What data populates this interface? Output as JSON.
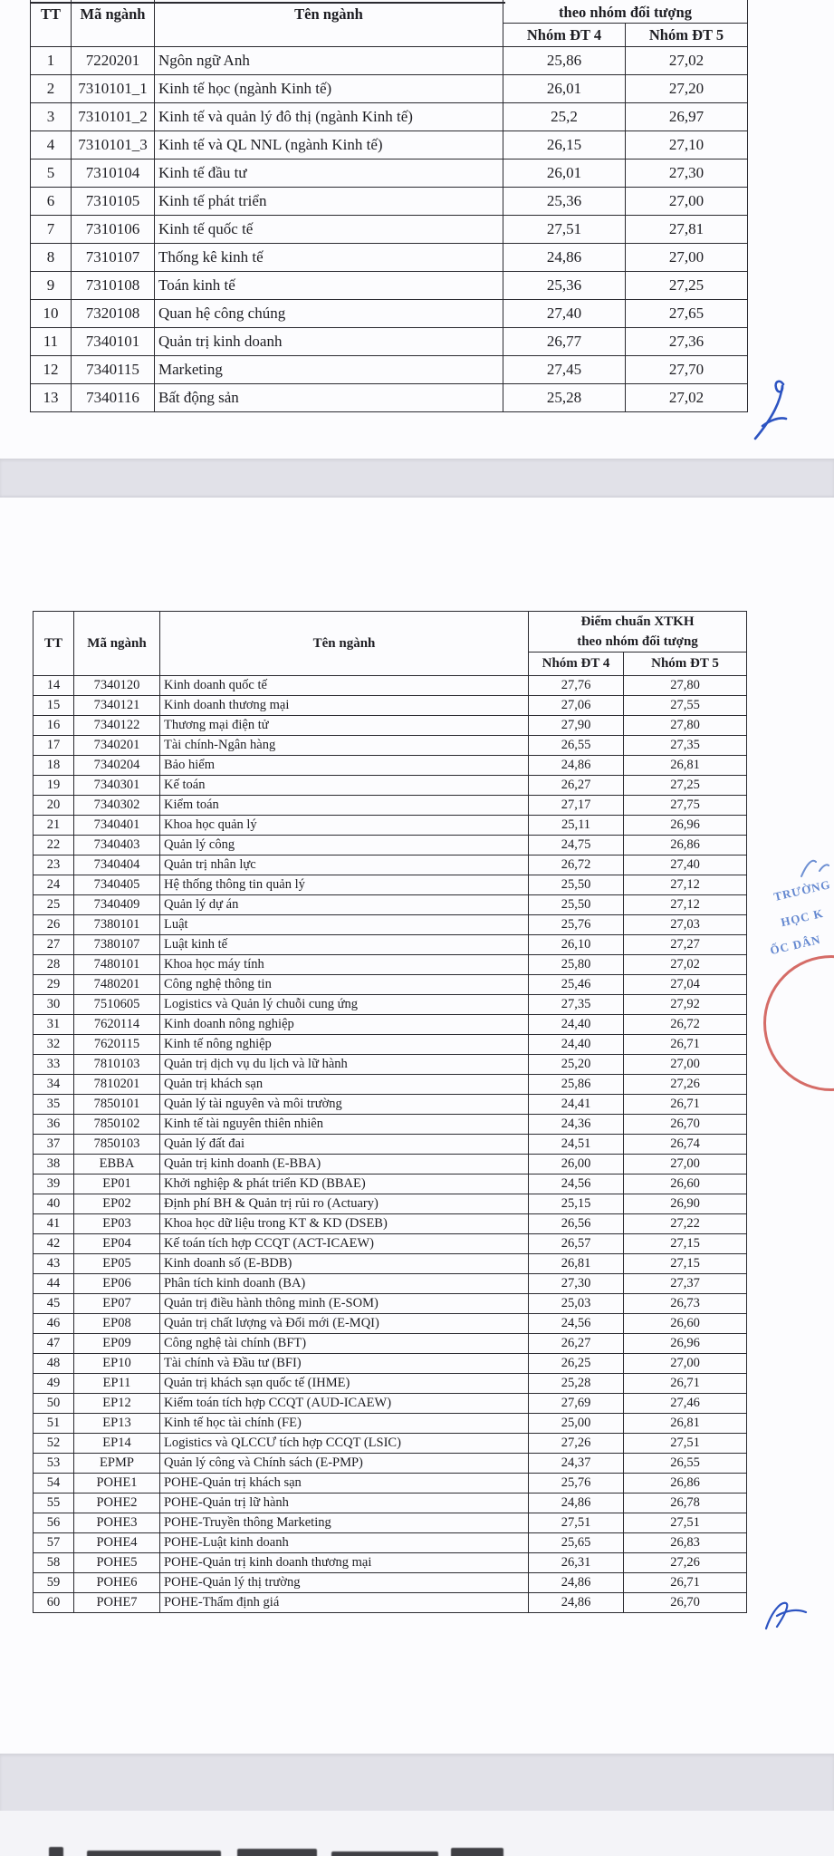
{
  "header": {
    "col_tt": "TT",
    "col_code": "Mã ngành",
    "col_name": "Tên ngành",
    "col_group_line1": "Điểm chuẩn XTKH",
    "col_group_line2": "theo nhóm đối tượng",
    "col_dt4": "Nhóm ĐT 4",
    "col_dt5": "Nhóm ĐT 5"
  },
  "table1": {
    "rows": [
      [
        "1",
        "7220201",
        "Ngôn ngữ Anh",
        "25,86",
        "27,02"
      ],
      [
        "2",
        "7310101_1",
        "Kinh tế học (ngành Kinh tế)",
        "26,01",
        "27,20"
      ],
      [
        "3",
        "7310101_2",
        "Kinh tế và quản lý đô thị (ngành Kinh tế)",
        "25,2",
        "26,97"
      ],
      [
        "4",
        "7310101_3",
        "Kinh tế và QL NNL (ngành Kinh tế)",
        "26,15",
        "27,10"
      ],
      [
        "5",
        "7310104",
        "Kinh tế đầu tư",
        "26,01",
        "27,30"
      ],
      [
        "6",
        "7310105",
        "Kinh tế phát triển",
        "25,36",
        "27,00"
      ],
      [
        "7",
        "7310106",
        "Kinh tế quốc tế",
        "27,51",
        "27,81"
      ],
      [
        "8",
        "7310107",
        "Thống kê kinh tế",
        "24,86",
        "27,00"
      ],
      [
        "9",
        "7310108",
        "Toán kinh tế",
        "25,36",
        "27,25"
      ],
      [
        "10",
        "7320108",
        "Quan hệ công chúng",
        "27,40",
        "27,65"
      ],
      [
        "11",
        "7340101",
        "Quản trị kinh doanh",
        "26,77",
        "27,36"
      ],
      [
        "12",
        "7340115",
        "Marketing",
        "27,45",
        "27,70"
      ],
      [
        "13",
        "7340116",
        "Bất động sản",
        "25,28",
        "27,02"
      ]
    ]
  },
  "table2": {
    "rows": [
      [
        "14",
        "7340120",
        "Kinh doanh quốc tế",
        "27,76",
        "27,80"
      ],
      [
        "15",
        "7340121",
        "Kinh doanh thương mại",
        "27,06",
        "27,55"
      ],
      [
        "16",
        "7340122",
        "Thương mại điện tử",
        "27,90",
        "27,80"
      ],
      [
        "17",
        "7340201",
        "Tài chính-Ngân hàng",
        "26,55",
        "27,35"
      ],
      [
        "18",
        "7340204",
        "Bảo hiểm",
        "24,86",
        "26,81"
      ],
      [
        "19",
        "7340301",
        "Kế toán",
        "26,27",
        "27,25"
      ],
      [
        "20",
        "7340302",
        "Kiểm toán",
        "27,17",
        "27,75"
      ],
      [
        "21",
        "7340401",
        "Khoa học quản lý",
        "25,11",
        "26,96"
      ],
      [
        "22",
        "7340403",
        "Quản lý công",
        "24,75",
        "26,86"
      ],
      [
        "23",
        "7340404",
        "Quản trị nhân lực",
        "26,72",
        "27,40"
      ],
      [
        "24",
        "7340405",
        "Hệ thống thông tin quản lý",
        "25,50",
        "27,12"
      ],
      [
        "25",
        "7340409",
        "Quản lý dự án",
        "25,50",
        "27,12"
      ],
      [
        "26",
        "7380101",
        "Luật",
        "25,76",
        "27,03"
      ],
      [
        "27",
        "7380107",
        "Luật kinh tế",
        "26,10",
        "27,27"
      ],
      [
        "28",
        "7480101",
        "Khoa học máy tính",
        "25,80",
        "27,02"
      ],
      [
        "29",
        "7480201",
        "Công nghệ thông tin",
        "25,46",
        "27,04"
      ],
      [
        "30",
        "7510605",
        "Logistics và Quản lý chuỗi cung ứng",
        "27,35",
        "27,92"
      ],
      [
        "31",
        "7620114",
        "Kinh doanh nông nghiệp",
        "24,40",
        "26,72"
      ],
      [
        "32",
        "7620115",
        "Kinh tế nông nghiệp",
        "24,40",
        "26,71"
      ],
      [
        "33",
        "7810103",
        "Quản trị dịch vụ du lịch và lữ hành",
        "25,20",
        "27,00"
      ],
      [
        "34",
        "7810201",
        "Quản trị khách sạn",
        "25,86",
        "27,26"
      ],
      [
        "35",
        "7850101",
        "Quản lý tài nguyên và môi trường",
        "24,41",
        "26,71"
      ],
      [
        "36",
        "7850102",
        "Kinh tế tài nguyên thiên nhiên",
        "24,36",
        "26,70"
      ],
      [
        "37",
        "7850103",
        "Quản lý đất đai",
        "24,51",
        "26,74"
      ],
      [
        "38",
        "EBBA",
        "Quản trị kinh doanh (E-BBA)",
        "26,00",
        "27,00"
      ],
      [
        "39",
        "EP01",
        "Khởi nghiệp & phát triển KD (BBAE)",
        "24,56",
        "26,60"
      ],
      [
        "40",
        "EP02",
        "Định phí BH & Quản trị rủi ro (Actuary)",
        "25,15",
        "26,90"
      ],
      [
        "41",
        "EP03",
        "Khoa học dữ liệu trong KT & KD (DSEB)",
        "26,56",
        "27,22"
      ],
      [
        "42",
        "EP04",
        "Kế toán tích hợp CCQT (ACT-ICAEW)",
        "26,57",
        "27,15"
      ],
      [
        "43",
        "EP05",
        "Kinh doanh số (E-BDB)",
        "26,81",
        "27,15"
      ],
      [
        "44",
        "EP06",
        "Phân tích kinh doanh (BA)",
        "27,30",
        "27,37"
      ],
      [
        "45",
        "EP07",
        "Quản trị điều hành thông minh (E-SOM)",
        "25,03",
        "26,73"
      ],
      [
        "46",
        "EP08",
        "Quản trị chất lượng và Đổi mới (E-MQI)",
        "24,56",
        "26,60"
      ],
      [
        "47",
        "EP09",
        "Công nghệ tài chính (BFT)",
        "26,27",
        "26,96"
      ],
      [
        "48",
        "EP10",
        "Tài chính và Đầu tư (BFI)",
        "26,25",
        "27,00"
      ],
      [
        "49",
        "EP11",
        "Quản trị khách sạn quốc tế (IHME)",
        "25,28",
        "26,71"
      ],
      [
        "50",
        "EP12",
        "Kiểm toán tích hợp CCQT (AUD-ICAEW)",
        "27,69",
        "27,46"
      ],
      [
        "51",
        "EP13",
        "Kinh tế học tài chính (FE)",
        "25,00",
        "26,81"
      ],
      [
        "52",
        "EP14",
        "Logistics và QLCCƯ tích hợp CCQT (LSIC)",
        "27,26",
        "27,51"
      ],
      [
        "53",
        "EPMP",
        "Quản lý công và Chính sách (E-PMP)",
        "24,37",
        "26,55"
      ],
      [
        "54",
        "POHE1",
        "POHE-Quản trị khách sạn",
        "25,76",
        "26,86"
      ],
      [
        "55",
        "POHE2",
        "POHE-Quản trị lữ hành",
        "24,86",
        "26,78"
      ],
      [
        "56",
        "POHE3",
        "POHE-Truyền thông Marketing",
        "27,51",
        "27,51"
      ],
      [
        "57",
        "POHE4",
        "POHE-Luật kinh doanh",
        "25,65",
        "26,83"
      ],
      [
        "58",
        "POHE5",
        "POHE-Quản trị kinh doanh thương mại",
        "26,31",
        "27,26"
      ],
      [
        "59",
        "POHE6",
        "POHE-Quản lý thị trường",
        "24,86",
        "26,71"
      ],
      [
        "60",
        "POHE7",
        "POHE-Thẩm định giá",
        "24,86",
        "26,70"
      ]
    ]
  },
  "stamp": {
    "fragments": [
      "TRƯỜNG",
      "HỌC K",
      "ỐC DÂN"
    ],
    "red": "#c6342c",
    "blue": "#4a74c8"
  }
}
